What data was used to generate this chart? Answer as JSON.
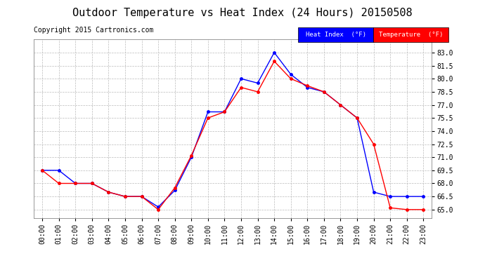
{
  "title": "Outdoor Temperature vs Heat Index (24 Hours) 20150508",
  "copyright": "Copyright 2015 Cartronics.com",
  "hours": [
    "00:00",
    "01:00",
    "02:00",
    "03:00",
    "04:00",
    "05:00",
    "06:00",
    "07:00",
    "08:00",
    "09:00",
    "10:00",
    "11:00",
    "12:00",
    "13:00",
    "14:00",
    "15:00",
    "16:00",
    "17:00",
    "18:00",
    "19:00",
    "20:00",
    "21:00",
    "22:00",
    "23:00"
  ],
  "heat_index": [
    69.5,
    69.5,
    68.0,
    68.0,
    67.0,
    66.5,
    66.5,
    65.3,
    67.2,
    71.0,
    76.2,
    76.2,
    80.0,
    79.5,
    83.0,
    80.5,
    79.0,
    78.5,
    77.0,
    75.5,
    67.0,
    66.5,
    66.5,
    66.5
  ],
  "temperature": [
    69.5,
    68.0,
    68.0,
    68.0,
    67.0,
    66.5,
    66.5,
    65.0,
    67.5,
    71.2,
    75.5,
    76.2,
    79.0,
    78.5,
    82.0,
    80.0,
    79.2,
    78.5,
    77.0,
    75.5,
    72.5,
    65.2,
    65.0,
    65.0
  ],
  "heat_index_color": "#0000ff",
  "temperature_color": "#ff0000",
  "ylim_min": 64.0,
  "ylim_max": 84.5,
  "yticks": [
    65.0,
    66.5,
    68.0,
    69.5,
    71.0,
    72.5,
    74.0,
    75.5,
    77.0,
    78.5,
    80.0,
    81.5,
    83.0
  ],
  "background_color": "#ffffff",
  "plot_bg_color": "#ffffff",
  "grid_color": "#bbbbbb",
  "legend_hi_bg": "#0000ff",
  "legend_temp_bg": "#ff0000",
  "title_fontsize": 11,
  "copyright_fontsize": 7,
  "tick_fontsize": 7,
  "ytick_fontsize": 7
}
